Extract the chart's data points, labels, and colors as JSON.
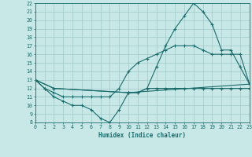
{
  "xlabel": "Humidex (Indice chaleur)",
  "bg_color": "#c8e8e8",
  "grid_color": "#a0c8c8",
  "line_color": "#1a6b6b",
  "xlim": [
    0,
    23
  ],
  "ylim": [
    8,
    22
  ],
  "xticks": [
    0,
    1,
    2,
    3,
    4,
    5,
    6,
    7,
    8,
    9,
    10,
    11,
    12,
    13,
    14,
    15,
    16,
    17,
    18,
    19,
    20,
    21,
    22,
    23
  ],
  "yticks": [
    8,
    9,
    10,
    11,
    12,
    13,
    14,
    15,
    16,
    17,
    18,
    19,
    20,
    21,
    22
  ],
  "line1_x": [
    0,
    1,
    2,
    3,
    4,
    5,
    6,
    7,
    8,
    9,
    10,
    11,
    12,
    13,
    14,
    15,
    16,
    17,
    18,
    19,
    20,
    21,
    22,
    23
  ],
  "line1_y": [
    13,
    12,
    11,
    10.5,
    10,
    10,
    9.5,
    8.5,
    8,
    9.5,
    11.5,
    11.5,
    12,
    14.5,
    17,
    19,
    20.5,
    22,
    21,
    19.5,
    16.5,
    16.5,
    14.5,
    12.5
  ],
  "line2_x": [
    0,
    1,
    2,
    3,
    4,
    5,
    6,
    7,
    8,
    9,
    10,
    11,
    12,
    13,
    14,
    15,
    16,
    17,
    18,
    19,
    20,
    21,
    22,
    23
  ],
  "line2_y": [
    13,
    12,
    11.5,
    11,
    11,
    11,
    11,
    11,
    11,
    12,
    14,
    15,
    15.5,
    16,
    16.5,
    17,
    17,
    17,
    16.5,
    16,
    16,
    16,
    16,
    12.5
  ],
  "line3_x": [
    0,
    2,
    10,
    11,
    12,
    13,
    14,
    15,
    16,
    17,
    18,
    19,
    20,
    21,
    22,
    23
  ],
  "line3_y": [
    13,
    12,
    11.5,
    11.5,
    12,
    12,
    12,
    12,
    12,
    12,
    12,
    12,
    12,
    12,
    12,
    12
  ],
  "line4_x": [
    0,
    2,
    10,
    23
  ],
  "line4_y": [
    13,
    12,
    11.5,
    12.5
  ]
}
